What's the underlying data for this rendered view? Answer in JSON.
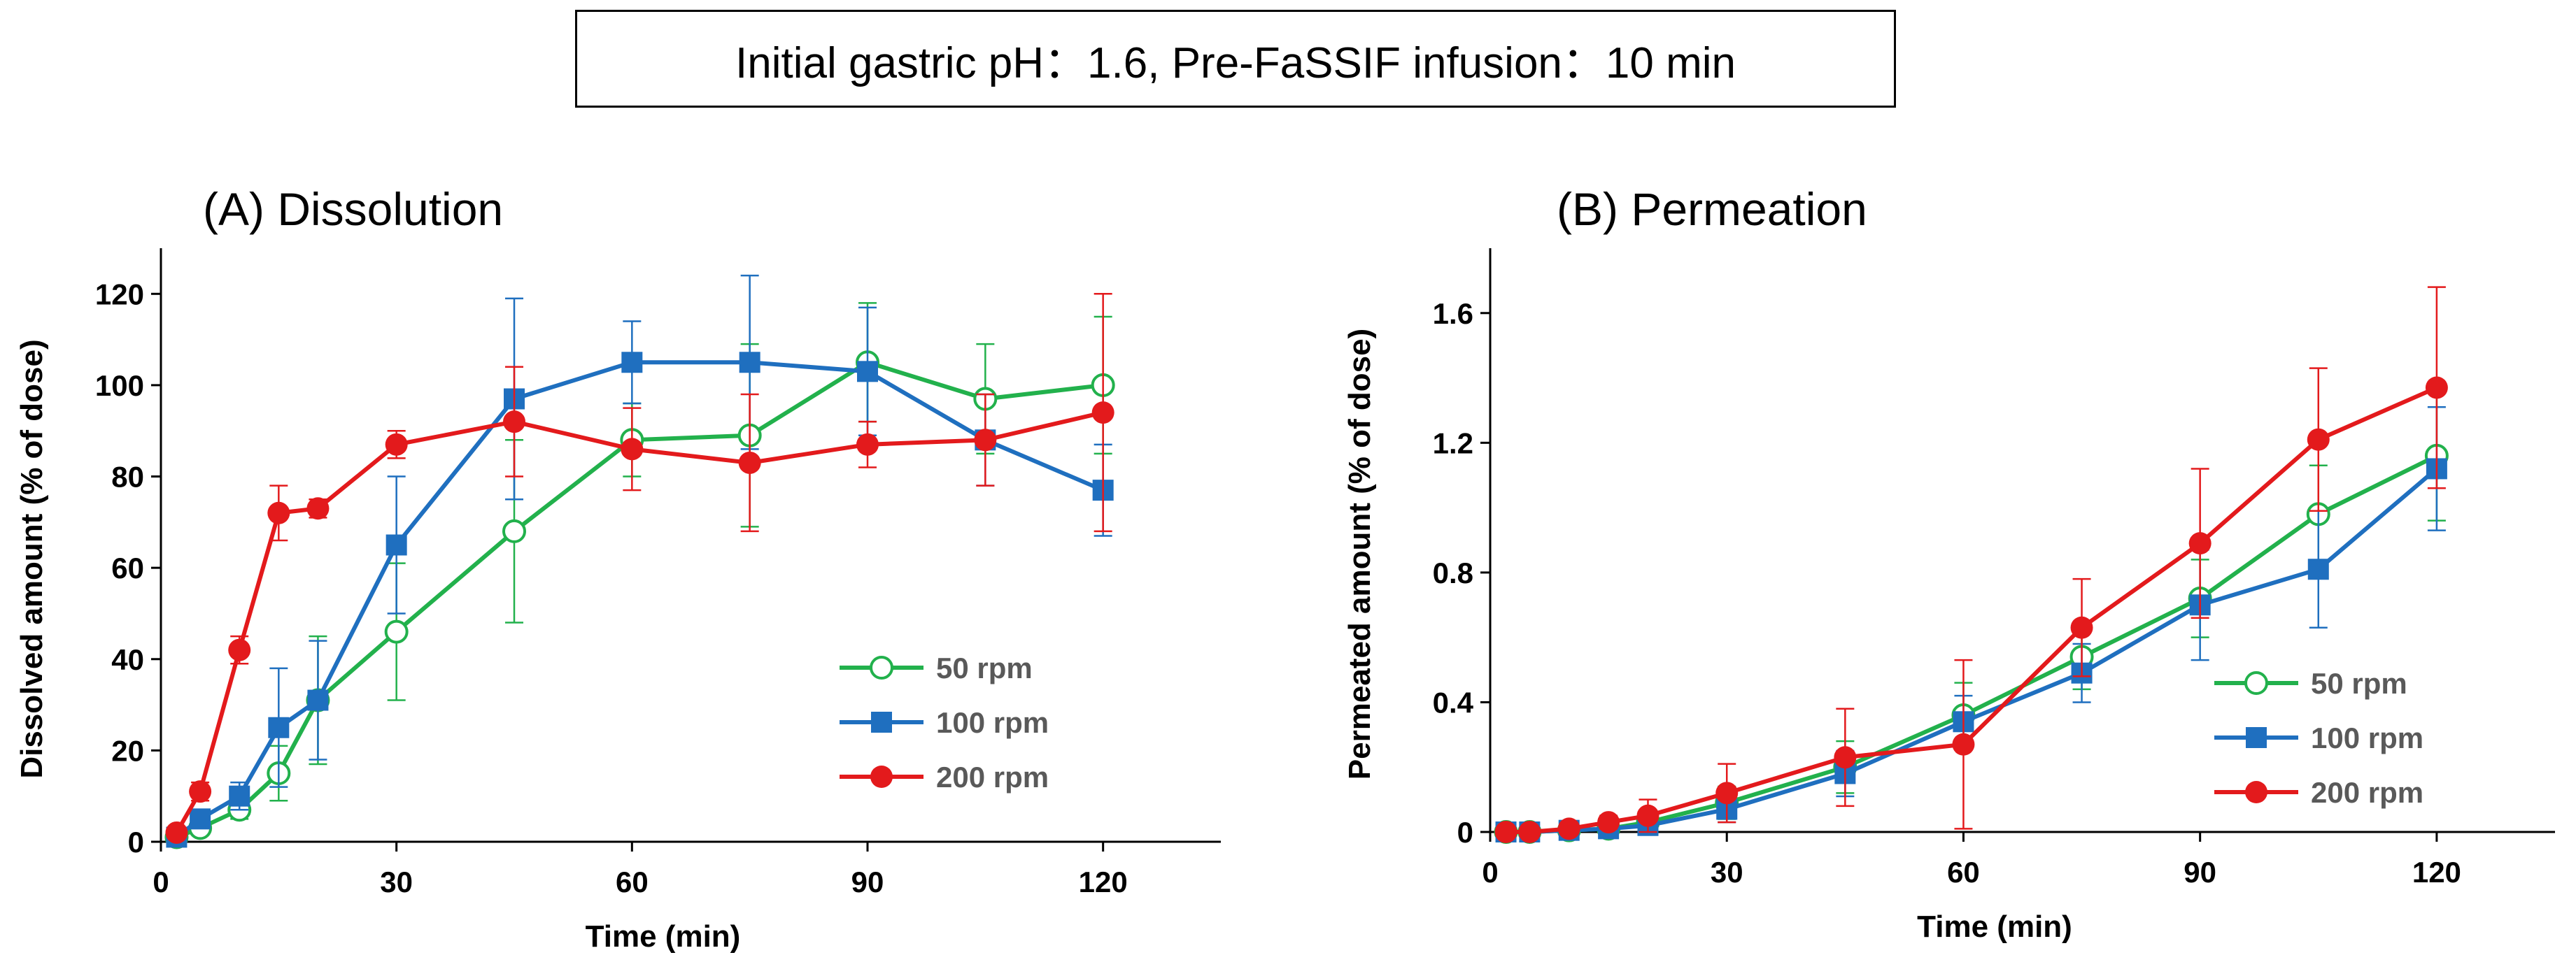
{
  "figure_title": "Initial gastric pH：1.6,   Pre-FaSSIF infusion：10 min",
  "chart_data": [
    {
      "type": "line",
      "title": "(A) Dissolution",
      "xlabel": "Time (min)",
      "ylabel": "Dissolved amount (% of dose)",
      "xlim": [
        0,
        135
      ],
      "ylim": [
        0,
        130
      ],
      "xticks": [
        0,
        30,
        60,
        90,
        120
      ],
      "yticks": [
        0,
        20,
        40,
        60,
        80,
        100,
        120
      ],
      "xtick_labels": [
        "0",
        "30",
        "60",
        "90",
        "120"
      ],
      "ytick_labels": [
        "0",
        "20",
        "40",
        "60",
        "80",
        "100",
        "120"
      ],
      "legend_position": "lower-right",
      "series": [
        {
          "name": "50 rpm",
          "color": "#22b14c",
          "marker": "circle-open",
          "x": [
            2,
            5,
            10,
            15,
            20,
            30,
            45,
            60,
            75,
            90,
            105,
            120
          ],
          "y": [
            1,
            3,
            7,
            15,
            31,
            46,
            68,
            88,
            89,
            105,
            97,
            100
          ],
          "err": [
            0.5,
            1,
            2,
            6,
            14,
            15,
            20,
            8,
            20,
            13,
            12,
            15
          ]
        },
        {
          "name": "100 rpm",
          "color": "#1f6fbf",
          "marker": "square",
          "x": [
            2,
            5,
            10,
            15,
            20,
            30,
            45,
            60,
            75,
            90,
            105,
            120
          ],
          "y": [
            1,
            5,
            10,
            25,
            31,
            65,
            97,
            105,
            105,
            103,
            88,
            77
          ],
          "err": [
            0.5,
            2,
            3,
            13,
            13,
            15,
            22,
            9,
            19,
            14,
            10,
            10
          ]
        },
        {
          "name": "200 rpm",
          "color": "#e31a1c",
          "marker": "circle",
          "x": [
            2,
            5,
            10,
            15,
            20,
            30,
            45,
            60,
            75,
            90,
            105,
            120
          ],
          "y": [
            2,
            11,
            42,
            72,
            73,
            87,
            92,
            86,
            83,
            87,
            88,
            94
          ],
          "err": [
            1,
            2,
            3,
            6,
            2,
            3,
            12,
            9,
            15,
            5,
            10,
            26
          ]
        }
      ]
    },
    {
      "type": "line",
      "title": "(B) Permeation",
      "xlabel": "Time (min)",
      "ylabel": "Permeated amount (% of dose)",
      "xlim": [
        0,
        135
      ],
      "ylim": [
        0,
        1.8
      ],
      "xticks": [
        0,
        30,
        60,
        90,
        120
      ],
      "yticks": [
        0,
        0.4,
        0.8,
        1.2,
        1.6
      ],
      "xtick_labels": [
        "0",
        "30",
        "60",
        "90",
        "120"
      ],
      "ytick_labels": [
        "0",
        "0.4",
        "0.8",
        "1.2",
        "1.6"
      ],
      "legend_position": "lower-right",
      "series": [
        {
          "name": "50 rpm",
          "color": "#22b14c",
          "marker": "circle-open",
          "x": [
            2,
            5,
            10,
            15,
            20,
            30,
            45,
            60,
            75,
            90,
            105,
            120
          ],
          "y": [
            0,
            0,
            0.005,
            0.01,
            0.03,
            0.09,
            0.2,
            0.36,
            0.54,
            0.72,
            0.98,
            1.16
          ],
          "err": [
            0.005,
            0.005,
            0.005,
            0.01,
            0.02,
            0.05,
            0.08,
            0.1,
            0.1,
            0.12,
            0.15,
            0.2
          ]
        },
        {
          "name": "100 rpm",
          "color": "#1f6fbf",
          "marker": "square",
          "x": [
            2,
            5,
            10,
            15,
            20,
            30,
            45,
            60,
            75,
            90,
            105,
            120
          ],
          "y": [
            0,
            0,
            0.005,
            0.01,
            0.02,
            0.07,
            0.18,
            0.34,
            0.49,
            0.7,
            0.81,
            1.12
          ],
          "err": [
            0.005,
            0.005,
            0.005,
            0.01,
            0.02,
            0.04,
            0.07,
            0.08,
            0.09,
            0.17,
            0.18,
            0.19
          ]
        },
        {
          "name": "200 rpm",
          "color": "#e31a1c",
          "marker": "circle",
          "x": [
            2,
            5,
            10,
            15,
            20,
            30,
            45,
            60,
            75,
            90,
            105,
            120
          ],
          "y": [
            0,
            0,
            0.01,
            0.03,
            0.05,
            0.12,
            0.23,
            0.27,
            0.63,
            0.89,
            1.21,
            1.37
          ],
          "err": [
            0.005,
            0.005,
            0.01,
            0.02,
            0.05,
            0.09,
            0.15,
            0.26,
            0.15,
            0.23,
            0.22,
            0.31
          ]
        }
      ]
    }
  ]
}
